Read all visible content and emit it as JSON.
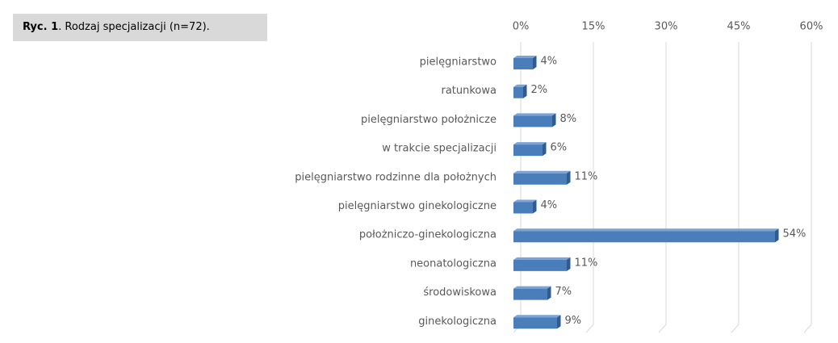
{
  "chart_data": {
    "type": "bar",
    "orientation": "horizontal",
    "figure_label": "Ryc. 1",
    "title": ". Rodzaj specjalizacji  (n=72).",
    "categories": [
      "pielęgniarstwo",
      "ratunkowa",
      "pielęgniarstwo położnicze",
      "w trakcie specjalizacji",
      "pielęgniarstwo rodzinne dla położnych",
      "pielęgniarstwo ginekologiczne",
      "położniczo-ginekologiczna",
      "neonatologiczna",
      "środowiskowa",
      "ginekologiczna"
    ],
    "values": [
      4,
      2,
      8,
      6,
      11,
      4,
      54,
      11,
      7,
      9
    ],
    "value_labels": [
      "4%",
      "2%",
      "8%",
      "6%",
      "11%",
      "4%",
      "54%",
      "11%",
      "7%",
      "9%"
    ],
    "color": "#4a7ebb",
    "xlim": [
      0,
      60
    ],
    "xticks": [
      {
        "value": 0,
        "label": "0%"
      },
      {
        "value": 15,
        "label": "15%"
      },
      {
        "value": 30,
        "label": "30%"
      },
      {
        "value": 45,
        "label": "45%"
      },
      {
        "value": 60,
        "label": "60%"
      }
    ],
    "grid": true
  }
}
